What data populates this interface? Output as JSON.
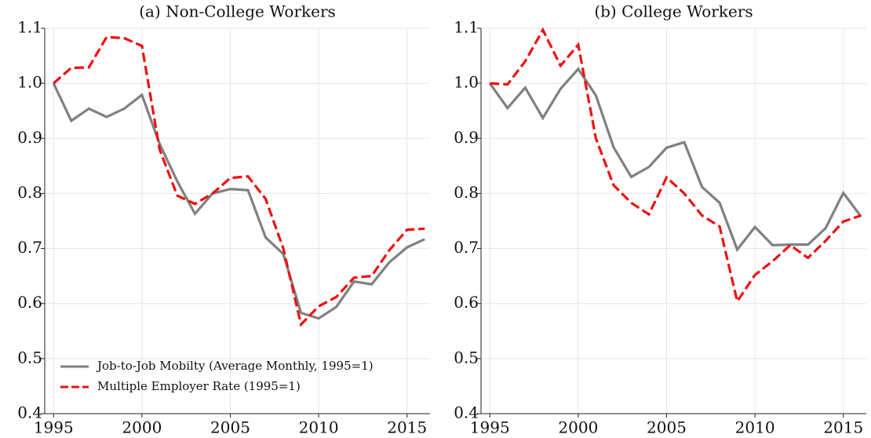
{
  "chart_data": [
    {
      "type": "line",
      "title": "(a) Non-College Workers",
      "x": [
        1995,
        1996,
        1997,
        1998,
        1999,
        2000,
        2001,
        2002,
        2003,
        2004,
        2005,
        2006,
        2007,
        2008,
        2009,
        2010,
        2011,
        2012,
        2013,
        2014,
        2015,
        2016
      ],
      "series": [
        {
          "name": "Job-to-Job Mobilty (Average Monthly, 1995=1)",
          "color": "#808080",
          "linestyle": "solid",
          "values": [
            1.0,
            0.932,
            0.954,
            0.939,
            0.954,
            0.979,
            0.89,
            0.822,
            0.763,
            0.8,
            0.808,
            0.806,
            0.72,
            0.69,
            0.583,
            0.573,
            0.594,
            0.64,
            0.635,
            0.675,
            0.702,
            0.717
          ]
        },
        {
          "name": "Multiple Employer Rate (1995=1)",
          "color": "#ee1111",
          "linestyle": "dashed",
          "values": [
            1.0,
            1.028,
            1.029,
            1.084,
            1.082,
            1.068,
            0.88,
            0.796,
            0.781,
            0.8,
            0.828,
            0.831,
            0.79,
            0.7,
            0.562,
            0.595,
            0.612,
            0.647,
            0.65,
            0.697,
            0.734,
            0.736
          ]
        }
      ],
      "xlim": [
        1994.5,
        2016.3
      ],
      "xticks": [
        1995,
        2000,
        2005,
        2010,
        2015
      ],
      "ylim": [
        0.4,
        1.1
      ],
      "yticks": [
        0.4,
        0.5,
        0.6,
        0.7,
        0.8,
        0.9,
        {
          "value": 1,
          "label": "1.0"
        },
        1.1
      ],
      "grid": true,
      "legend": "lower left"
    },
    {
      "type": "line",
      "title": "(b) College Workers",
      "x": [
        1995,
        1996,
        1997,
        1998,
        1999,
        2000,
        2001,
        2002,
        2003,
        2004,
        2005,
        2006,
        2007,
        2008,
        2009,
        2010,
        2011,
        2012,
        2013,
        2014,
        2015,
        2016
      ],
      "series": [
        {
          "color": "#808080",
          "linestyle": "solid",
          "values": [
            1.0,
            0.955,
            0.992,
            0.937,
            0.99,
            1.026,
            0.978,
            0.884,
            0.83,
            0.848,
            0.883,
            0.893,
            0.812,
            0.783,
            0.698,
            0.739,
            0.706,
            0.707,
            0.707,
            0.737,
            0.801,
            0.758
          ]
        },
        {
          "color": "#ee1111",
          "linestyle": "dashed",
          "values": [
            1.0,
            0.998,
            1.04,
            1.097,
            1.032,
            1.07,
            0.9,
            0.815,
            0.783,
            0.762,
            0.829,
            0.8,
            0.76,
            0.74,
            0.604,
            0.652,
            0.677,
            0.706,
            0.683,
            0.714,
            0.749,
            0.76
          ]
        }
      ],
      "xlim": [
        1994.5,
        2016.3
      ],
      "xticks": [
        1995,
        2000,
        2005,
        2010,
        2015
      ],
      "ylim": [
        0.4,
        1.1
      ],
      "yticks": [
        0.4,
        0.5,
        0.6,
        0.7,
        0.8,
        0.9,
        {
          "value": 1,
          "label": "1.0"
        },
        1.1
      ],
      "grid": true
    }
  ]
}
